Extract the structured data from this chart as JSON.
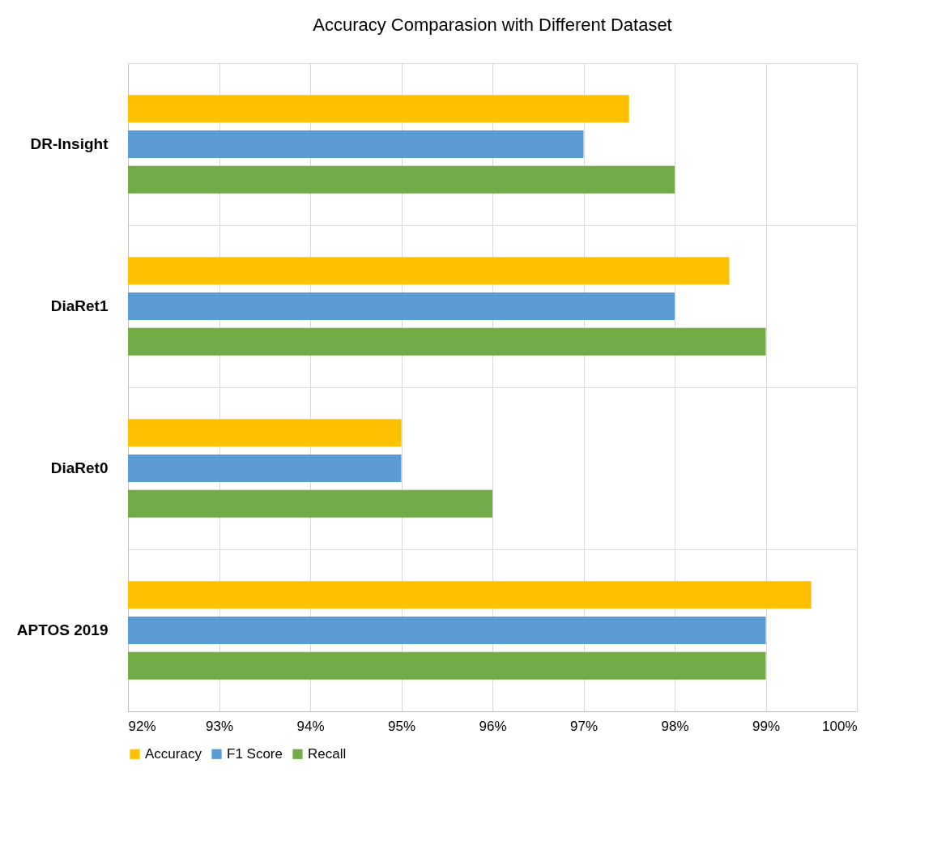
{
  "chart_data": {
    "type": "bar",
    "orientation": "horizontal",
    "title": "Accuracy Comparasion with Different Dataset",
    "categories": [
      "DR-Insight",
      "DiaRet1",
      "DiaRet0",
      "APTOS 2019"
    ],
    "series": [
      {
        "name": "Accuracy",
        "color": "#ffc000",
        "values": [
          97.5,
          98.6,
          95,
          99.5
        ]
      },
      {
        "name": "F1 Score",
        "color": "#5b9bd5",
        "values": [
          97,
          98,
          95,
          99
        ]
      },
      {
        "name": "Recall",
        "color": "#70ad47",
        "values": [
          98,
          99,
          96,
          99
        ]
      }
    ],
    "xlim": [
      92,
      100
    ],
    "xticks": [
      {
        "value": 92,
        "label": "92%"
      },
      {
        "value": 93,
        "label": "93%"
      },
      {
        "value": 94,
        "label": "94%"
      },
      {
        "value": 95,
        "label": "95%"
      },
      {
        "value": 96,
        "label": "96%"
      },
      {
        "value": 97,
        "label": "97%"
      },
      {
        "value": 98,
        "label": "98%"
      },
      {
        "value": 99,
        "label": "99%"
      },
      {
        "value": 100,
        "label": "100%"
      }
    ],
    "grid": true,
    "legend": "bottom"
  }
}
